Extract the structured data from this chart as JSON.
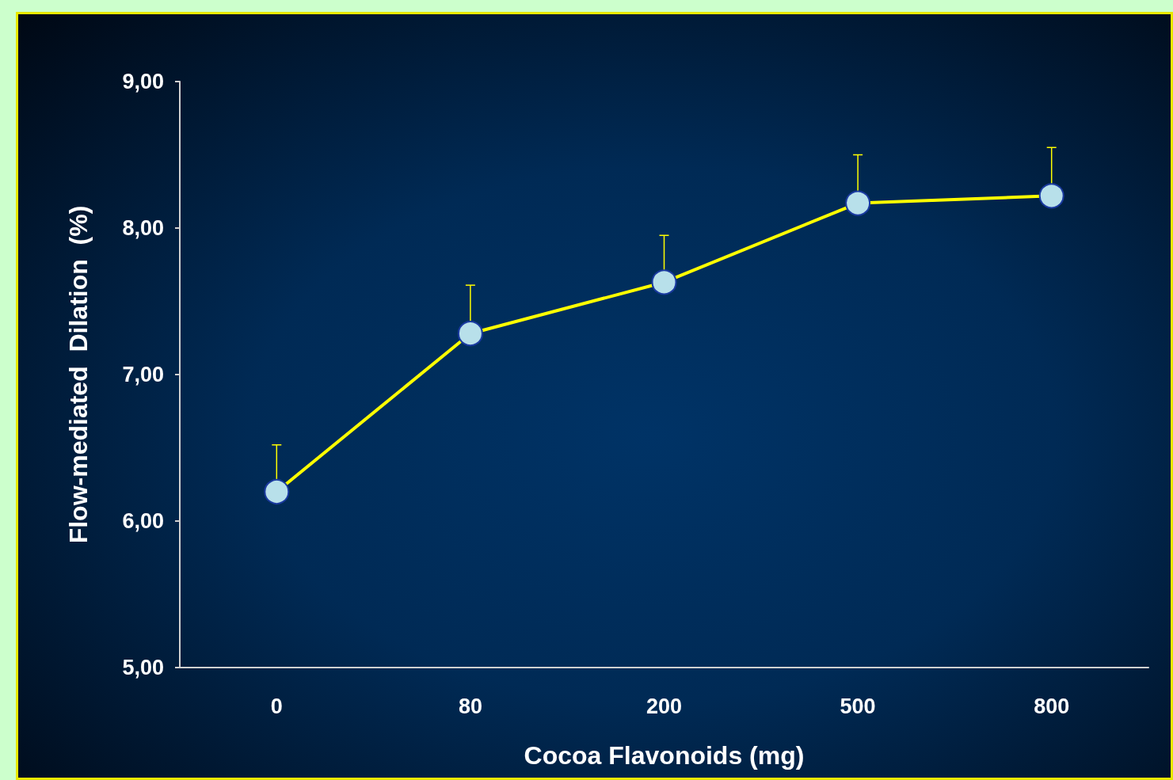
{
  "chart_data": {
    "type": "line",
    "xlabel": "Cocoa Flavonoids (mg)",
    "ylabel": "Flow-mediated  Dilation  (%)",
    "categories": [
      "0",
      "80",
      "200",
      "500",
      "800"
    ],
    "series": [
      {
        "color": "#ffff00",
        "values": [
          6.2,
          7.28,
          7.63,
          8.17,
          8.22
        ],
        "errors": [
          [
            6.2,
            6.52
          ],
          [
            7.28,
            7.61
          ],
          [
            7.63,
            7.95
          ],
          [
            8.17,
            8.5
          ],
          [
            8.22,
            8.55
          ]
        ]
      }
    ],
    "ylim": [
      5,
      9
    ],
    "yticks": [
      {
        "value": 5,
        "label": "5,00"
      },
      {
        "value": 6,
        "label": "6,00"
      },
      {
        "value": 7,
        "label": "7,00"
      },
      {
        "value": 8,
        "label": "8,00"
      },
      {
        "value": 9,
        "label": "9,00"
      }
    ],
    "grid": false,
    "marker": "circle",
    "line_style": "solid"
  }
}
